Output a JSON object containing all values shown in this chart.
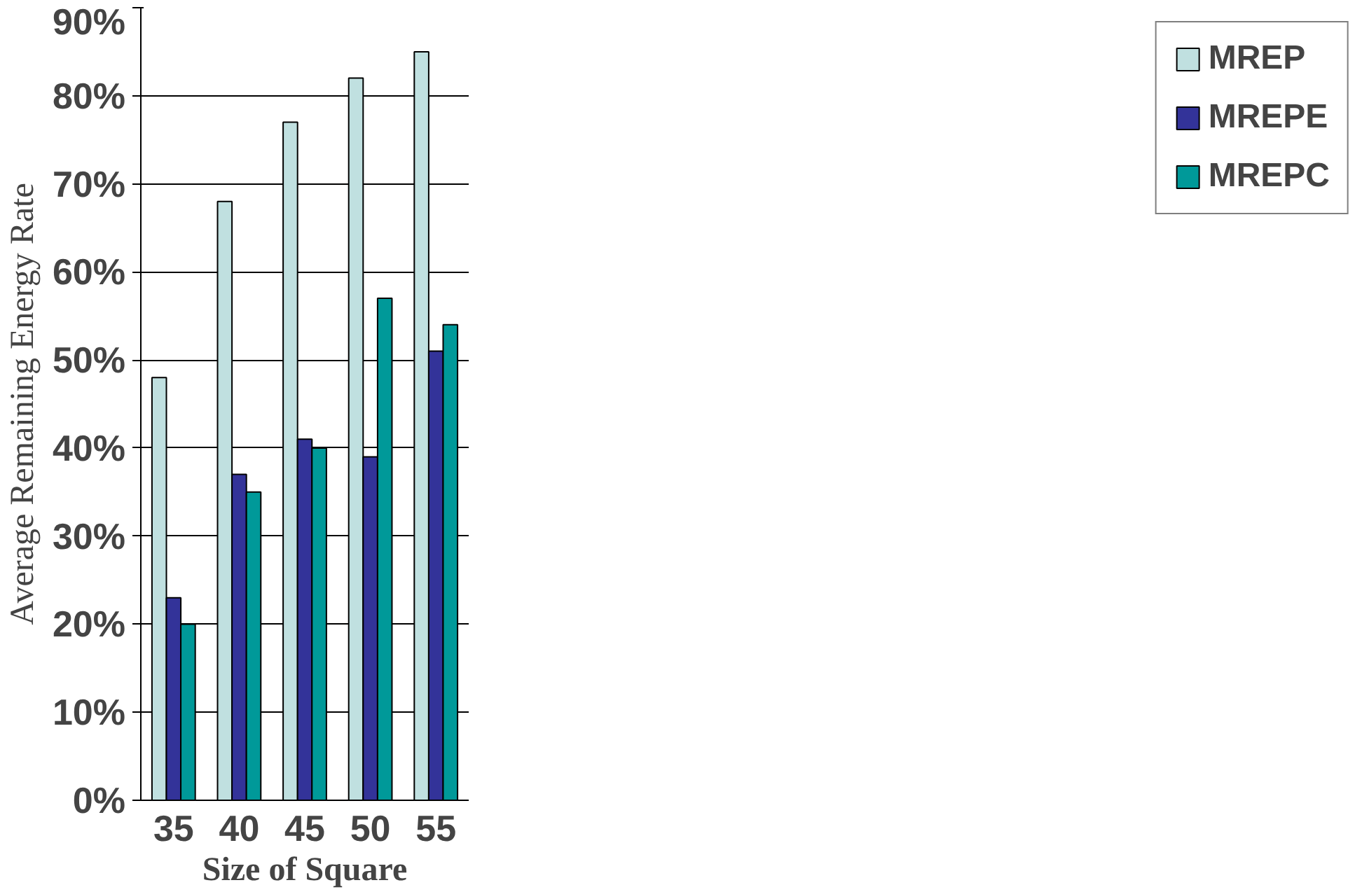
{
  "chart_data": {
    "type": "bar",
    "xlabel": "Size of Square",
    "ylabel": "Average Remaining Energy Rate",
    "categories": [
      "35",
      "40",
      "45",
      "50",
      "55"
    ],
    "series": [
      {
        "name": "MREP",
        "color": "#c0e0e0",
        "values": [
          48,
          68,
          77,
          82,
          85
        ]
      },
      {
        "name": "MREPE",
        "color": "#333399",
        "values": [
          23,
          37,
          41,
          39,
          51
        ]
      },
      {
        "name": "MREPC",
        "color": "#009999",
        "values": [
          20,
          35,
          40,
          57,
          54
        ]
      }
    ],
    "ylim": [
      0,
      90
    ],
    "yticks": [
      {
        "value": 0,
        "label": "0%"
      },
      {
        "value": 10,
        "label": "10%"
      },
      {
        "value": 20,
        "label": "20%"
      },
      {
        "value": 30,
        "label": "30%"
      },
      {
        "value": 40,
        "label": "40%"
      },
      {
        "value": 50,
        "label": "50%"
      },
      {
        "value": 60,
        "label": "60%"
      },
      {
        "value": 70,
        "label": "70%"
      },
      {
        "value": 80,
        "label": "80%"
      },
      {
        "value": 90,
        "label": "90%"
      }
    ],
    "grid": "y",
    "legend": "right"
  }
}
